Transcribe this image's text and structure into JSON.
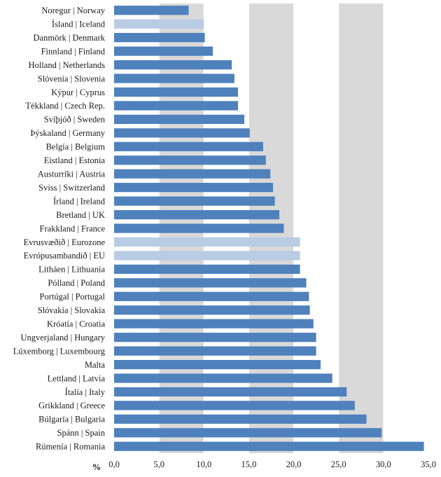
{
  "chart_data": {
    "type": "bar",
    "orientation": "horizontal",
    "categories": [
      "Noregur | Norway",
      "Ísland | Iceland",
      "Danmörk | Denmark",
      "Finnland | Finland",
      "Holland | Netherlands",
      "Slóvenía | Slovenia",
      "Kýpur | Cyprus",
      "Tékkland | Czech Rep.",
      "Svíþjóð | Sweden",
      "Þýskaland | Germany",
      "Belgía | Belgium",
      "Eistland | Estonia",
      "Austurríki | Austria",
      "Sviss | Switzerland",
      "Írland | Ireland",
      "Bretland | UK",
      "Frakkland | France",
      "Evrusvæðið | Eurozone",
      "Evrópusambandið | EU",
      "Litháen | Lithuania",
      "Pólland | Poland",
      "Portúgal | Portugal",
      "Slóvakía | Slovakia",
      "Króatía | Croatia",
      "Ungverjaland | Hungary",
      "Lúxemborg | Luxembourg",
      "Malta",
      "Lettland | Latvia",
      "Ítalía | Italy",
      "Grikkland | Greece",
      "Búlgaría | Bulgaria",
      "Spánn | Spain",
      "Rúmenía | Romania"
    ],
    "values": [
      8.3,
      10.0,
      10.1,
      11.0,
      13.1,
      13.4,
      13.8,
      13.8,
      14.5,
      15.1,
      16.6,
      16.9,
      17.4,
      17.7,
      17.9,
      18.4,
      18.9,
      20.7,
      20.7,
      20.7,
      21.4,
      21.7,
      21.8,
      22.2,
      22.5,
      22.5,
      23.0,
      24.3,
      25.9,
      26.8,
      28.1,
      29.8,
      34.5
    ],
    "highlight": [
      false,
      true,
      false,
      false,
      false,
      false,
      false,
      false,
      false,
      false,
      false,
      false,
      false,
      false,
      false,
      false,
      false,
      true,
      true,
      false,
      false,
      false,
      false,
      false,
      false,
      false,
      false,
      false,
      false,
      false,
      false,
      false,
      false
    ],
    "xticks": [
      "0,0",
      "5,0",
      "10,0",
      "15,0",
      "20,0",
      "25,0",
      "30,0",
      "35,0"
    ],
    "xlim": [
      0,
      35
    ],
    "unit_label": "%",
    "grid": true,
    "colors": {
      "bar": "#4f81bd",
      "bar_highlight": "#b8cce4",
      "plot_band_light": "#ffffff",
      "plot_band_dark": "#d9d9d9",
      "gridline": "#ffffff"
    }
  }
}
